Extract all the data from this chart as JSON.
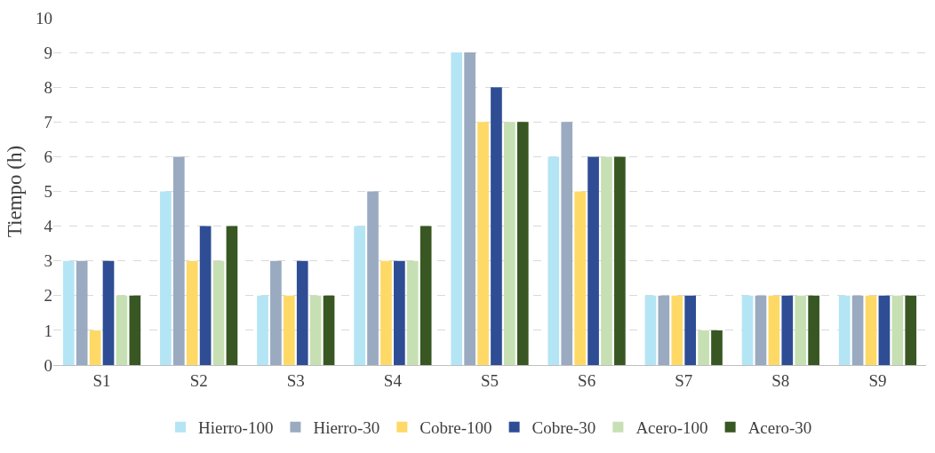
{
  "chart_data": {
    "type": "bar",
    "ylabel": "Tiempo (h)",
    "categories": [
      "S1",
      "S2",
      "S3",
      "S4",
      "S5",
      "S6",
      "S7",
      "S8",
      "S9"
    ],
    "series": [
      {
        "name": "Hierro-100",
        "color": "#b4e5f5",
        "values": [
          3,
          5,
          2,
          4,
          9,
          6,
          2,
          2,
          2
        ]
      },
      {
        "name": "Hierro-30",
        "color": "#9aaac0",
        "values": [
          3,
          6,
          3,
          5,
          9,
          7,
          2,
          2,
          2
        ]
      },
      {
        "name": "Cobre-100",
        "color": "#ffd966",
        "values": [
          1,
          3,
          2,
          3,
          7,
          5,
          2,
          2,
          2
        ]
      },
      {
        "name": "Cobre-30",
        "color": "#2e4d94",
        "values": [
          3,
          4,
          3,
          3,
          8,
          6,
          2,
          2,
          2
        ]
      },
      {
        "name": "Acero-100",
        "color": "#c6e0b4",
        "values": [
          2,
          3,
          2,
          3,
          7,
          6,
          1,
          2,
          2
        ]
      },
      {
        "name": "Acero-30",
        "color": "#385723",
        "values": [
          2,
          4,
          2,
          4,
          7,
          6,
          1,
          2,
          2
        ]
      }
    ],
    "ylim": [
      0,
      10
    ],
    "yticks": [
      0,
      1,
      2,
      3,
      4,
      5,
      6,
      7,
      8,
      9,
      10
    ],
    "grid": "y",
    "legend": "bottom"
  }
}
